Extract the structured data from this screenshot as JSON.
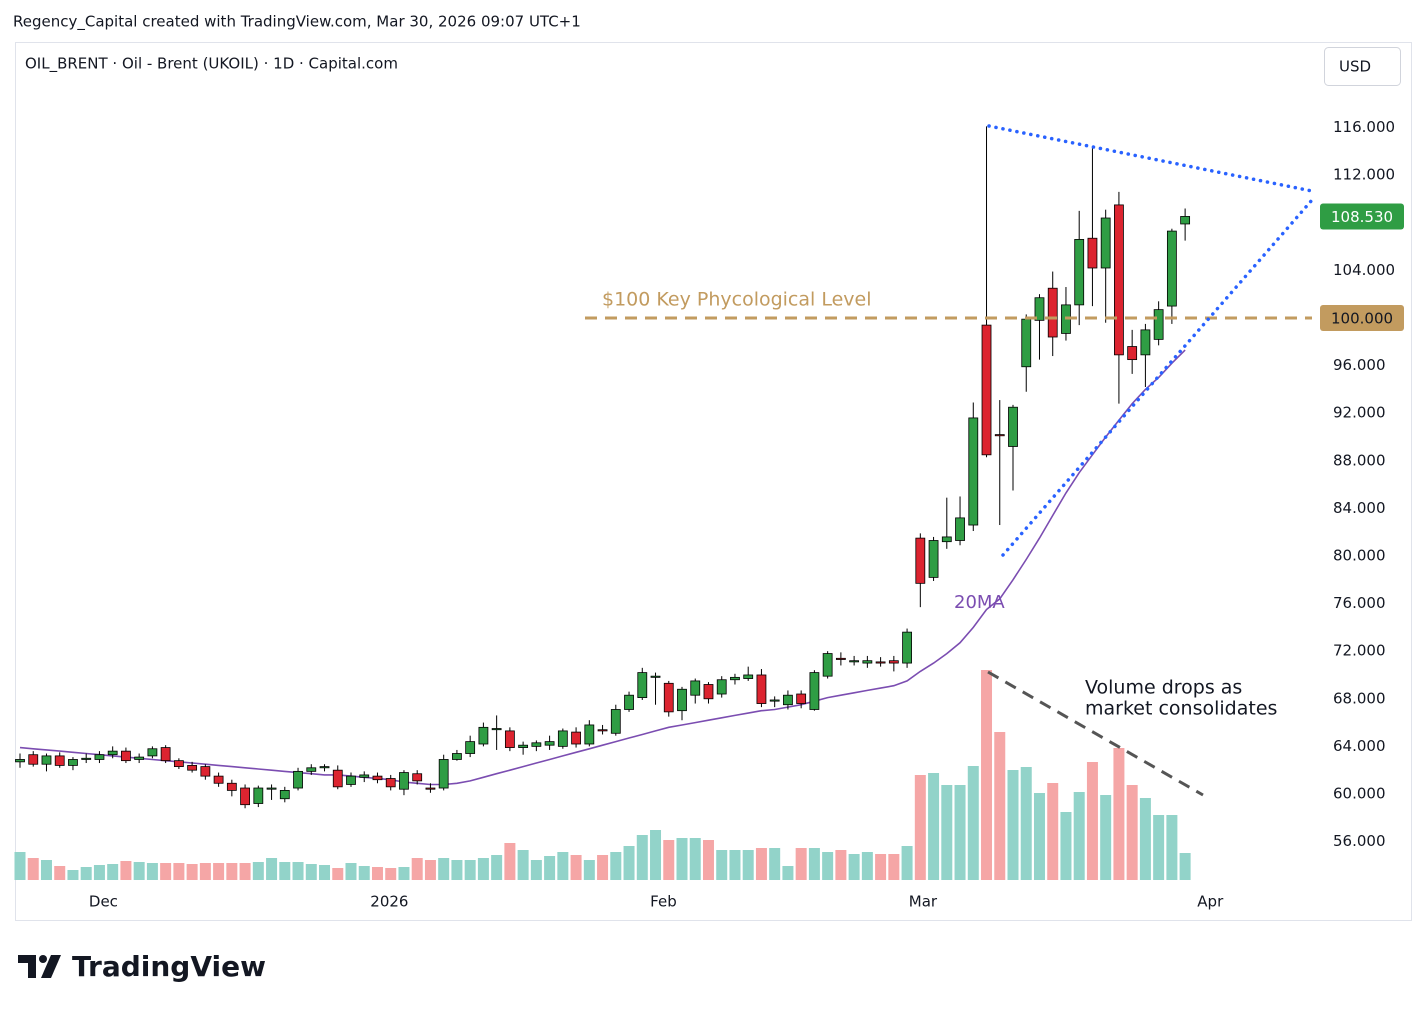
{
  "header": {
    "attribution": "Regency_Capital created with TradingView.com, Mar 30, 2026 09:07 UTC+1",
    "symbol": "OIL_BRENT · Oil - Brent (UKOIL) · 1D · Capital.com",
    "currency": "USD",
    "logo": "TradingView"
  },
  "chart_data": {
    "type": "candlestick",
    "open": [
      62.7,
      63.3,
      62.5,
      63.2,
      62.4,
      62.9,
      62.9,
      63.3,
      63.6,
      62.9,
      63.2,
      63.9,
      62.8,
      62.4,
      62.3,
      61.5,
      60.9,
      60.5,
      59.2,
      60.4,
      59.6,
      60.5,
      61.9,
      62.2,
      62.0,
      60.8,
      61.4,
      61.5,
      61.3,
      60.4,
      61.7,
      60.5,
      60.5,
      62.9,
      63.4,
      64.2,
      65.4,
      65.3,
      63.9,
      64.0,
      64.1,
      64.0,
      65.2,
      64.2,
      65.4,
      65.1,
      67.1,
      68.1,
      69.8,
      69.3,
      67.0,
      68.3,
      69.2,
      68.4,
      69.6,
      69.7,
      70.0,
      67.8,
      67.5,
      68.4,
      67.1,
      69.9,
      71.4,
      71.1,
      71.0,
      71.1,
      71.2,
      71.0,
      81.5,
      78.2,
      81.2,
      81.3,
      82.6,
      99.4,
      90.2,
      89.2,
      95.9,
      99.8,
      102.5,
      98.7,
      101.1,
      106.7,
      104.2,
      109.5,
      97.6,
      96.9,
      98.2,
      101.0,
      107.9
    ],
    "high": [
      63.4,
      63.6,
      63.4,
      63.5,
      63.1,
      63.4,
      63.6,
      64.0,
      63.9,
      63.4,
      64.0,
      64.1,
      63.0,
      62.7,
      62.5,
      61.8,
      61.2,
      60.8,
      60.7,
      60.8,
      60.6,
      62.2,
      62.5,
      62.5,
      62.4,
      61.8,
      61.9,
      61.8,
      61.6,
      62.0,
      62.0,
      60.9,
      63.3,
      63.7,
      64.9,
      66.0,
      66.6,
      65.6,
      64.4,
      64.5,
      64.9,
      65.5,
      65.6,
      66.2,
      65.8,
      67.5,
      68.6,
      70.6,
      70.2,
      69.5,
      69.0,
      69.7,
      69.4,
      69.9,
      70.1,
      70.7,
      70.5,
      68.2,
      68.7,
      68.7,
      70.4,
      72.0,
      71.9,
      71.6,
      71.6,
      71.5,
      71.6,
      73.9,
      81.9,
      81.6,
      84.9,
      85.0,
      92.9,
      116.1,
      93.1,
      92.7,
      100.3,
      102.0,
      103.9,
      102.6,
      109.0,
      114.3,
      109.1,
      110.6,
      99.0,
      99.5,
      101.4,
      107.5,
      109.2
    ],
    "low": [
      62.2,
      62.3,
      61.9,
      62.2,
      62.0,
      62.6,
      62.6,
      63.0,
      62.6,
      62.6,
      63.0,
      62.6,
      62.1,
      61.8,
      61.2,
      60.6,
      59.8,
      58.8,
      58.9,
      59.5,
      59.3,
      60.3,
      61.6,
      61.9,
      60.4,
      60.6,
      61.0,
      60.9,
      60.3,
      59.9,
      60.8,
      60.1,
      60.3,
      62.8,
      63.1,
      64.0,
      63.7,
      63.6,
      63.3,
      63.6,
      63.7,
      63.8,
      63.9,
      64.0,
      65.0,
      64.9,
      66.9,
      67.9,
      67.5,
      66.5,
      66.2,
      67.6,
      67.6,
      68.1,
      69.2,
      69.5,
      67.3,
      67.3,
      67.1,
      67.2,
      67.0,
      69.7,
      70.8,
      70.8,
      70.6,
      70.7,
      70.3,
      70.6,
      75.7,
      77.9,
      80.6,
      80.9,
      82.1,
      88.3,
      82.6,
      85.5,
      93.8,
      96.5,
      96.8,
      98.1,
      99.4,
      101.0,
      99.6,
      92.8,
      95.3,
      94.2,
      97.7,
      99.5,
      106.5
    ],
    "close": [
      62.9,
      62.5,
      63.2,
      62.4,
      62.9,
      63.0,
      63.3,
      63.6,
      62.8,
      63.1,
      63.8,
      62.8,
      62.3,
      62.0,
      61.5,
      60.9,
      60.3,
      59.1,
      60.5,
      60.5,
      60.3,
      61.9,
      62.2,
      62.3,
      60.6,
      61.5,
      61.6,
      61.2,
      60.6,
      61.8,
      61.1,
      60.4,
      62.9,
      63.4,
      64.4,
      65.6,
      65.5,
      63.9,
      64.1,
      64.3,
      64.4,
      65.3,
      64.2,
      65.8,
      65.3,
      67.1,
      68.3,
      70.2,
      69.9,
      66.9,
      68.8,
      69.5,
      68.0,
      69.6,
      69.8,
      70.0,
      67.6,
      67.9,
      68.3,
      67.6,
      70.2,
      71.8,
      71.3,
      71.2,
      71.2,
      71.0,
      71.0,
      73.6,
      77.7,
      81.3,
      81.6,
      83.2,
      91.6,
      88.5,
      90.1,
      92.5,
      99.9,
      101.7,
      98.4,
      101.1,
      106.6,
      104.2,
      108.4,
      96.9,
      96.5,
      99.0,
      100.7,
      107.3,
      108.53
    ],
    "up_color": "#2f9d44",
    "down_color": "#dc2430",
    "ylim": [
      49.41,
      123.19
    ],
    "yticks": [
      {
        "value": 56,
        "label": "56.000"
      },
      {
        "value": 60,
        "label": "60.000"
      },
      {
        "value": 64,
        "label": "64.000"
      },
      {
        "value": 68,
        "label": "68.000"
      },
      {
        "value": 72,
        "label": "72.000"
      },
      {
        "value": 76,
        "label": "76.000"
      },
      {
        "value": 80,
        "label": "80.000"
      },
      {
        "value": 84,
        "label": "84.000"
      },
      {
        "value": 88,
        "label": "88.000"
      },
      {
        "value": 92,
        "label": "92.000"
      },
      {
        "value": 96,
        "label": "96.000"
      },
      {
        "value": 104,
        "label": "104.000"
      },
      {
        "value": 112,
        "label": "112.000"
      },
      {
        "value": 116,
        "label": "116.000"
      }
    ],
    "xticks": [
      {
        "value": 6.3,
        "label": "Dec"
      },
      {
        "value": 27.9,
        "label": "2026"
      },
      {
        "value": 48.6,
        "label": "Feb"
      },
      {
        "value": 68.2,
        "label": "Mar"
      },
      {
        "value": 89.9,
        "label": "Apr"
      }
    ],
    "ma": {
      "name": "20MA",
      "color": "#7b4db1",
      "values": [
        63.9,
        63.8,
        63.7,
        63.6,
        63.5,
        63.4,
        63.3,
        63.2,
        63.1,
        63.0,
        62.9,
        62.8,
        62.7,
        62.6,
        62.5,
        62.4,
        62.3,
        62.2,
        62.1,
        62.0,
        61.9,
        61.8,
        61.7,
        61.6,
        61.6,
        61.5,
        61.4,
        61.3,
        61.2,
        61.0,
        60.9,
        60.8,
        60.8,
        60.9,
        61.1,
        61.4,
        61.7,
        62.0,
        62.3,
        62.6,
        62.9,
        63.2,
        63.5,
        63.8,
        64.1,
        64.4,
        64.7,
        65.0,
        65.3,
        65.6,
        65.8,
        66.0,
        66.2,
        66.4,
        66.6,
        66.8,
        67.0,
        67.1,
        67.3,
        67.5,
        67.8,
        68.1,
        68.3,
        68.5,
        68.7,
        68.9,
        69.1,
        69.5,
        70.3,
        71.0,
        71.8,
        72.7,
        74.0,
        75.5,
        76.4,
        78.0,
        79.7,
        81.5,
        83.4,
        85.3,
        87.0,
        88.5,
        90.0,
        91.4,
        92.8,
        94.0,
        95.0,
        96.2,
        97.3
      ]
    },
    "volume": {
      "up_color": "#92d3c9",
      "down_color": "#f5a6a6",
      "ylim": [
        0,
        838
      ],
      "values": [
        28,
        22,
        20,
        14,
        10,
        13,
        15,
        16,
        19,
        18,
        17,
        17,
        17,
        16,
        17,
        17,
        17,
        17,
        18,
        22,
        18,
        18,
        16,
        15,
        12,
        17,
        14,
        13,
        12,
        13,
        22,
        20,
        22,
        20,
        20,
        22,
        25,
        37,
        30,
        20,
        24,
        28,
        25,
        20,
        25,
        28,
        34,
        45,
        50,
        40,
        42,
        42,
        40,
        30,
        30,
        30,
        32,
        32,
        14,
        32,
        32,
        28,
        30,
        26,
        28,
        26,
        26,
        34,
        105,
        107,
        95,
        95,
        114,
        210,
        148,
        110,
        113,
        87,
        97,
        68,
        88,
        118,
        85,
        132,
        95,
        82,
        65,
        65,
        27
      ]
    },
    "key_level": {
      "value": 100,
      "label": "100.000",
      "text": "$100 Key Phycological Level",
      "color": "#c29b5f"
    },
    "last_price": {
      "value": 108.53,
      "label": "108.530"
    },
    "annotations": [
      "Volume drops as",
      "market consolidates"
    ]
  }
}
